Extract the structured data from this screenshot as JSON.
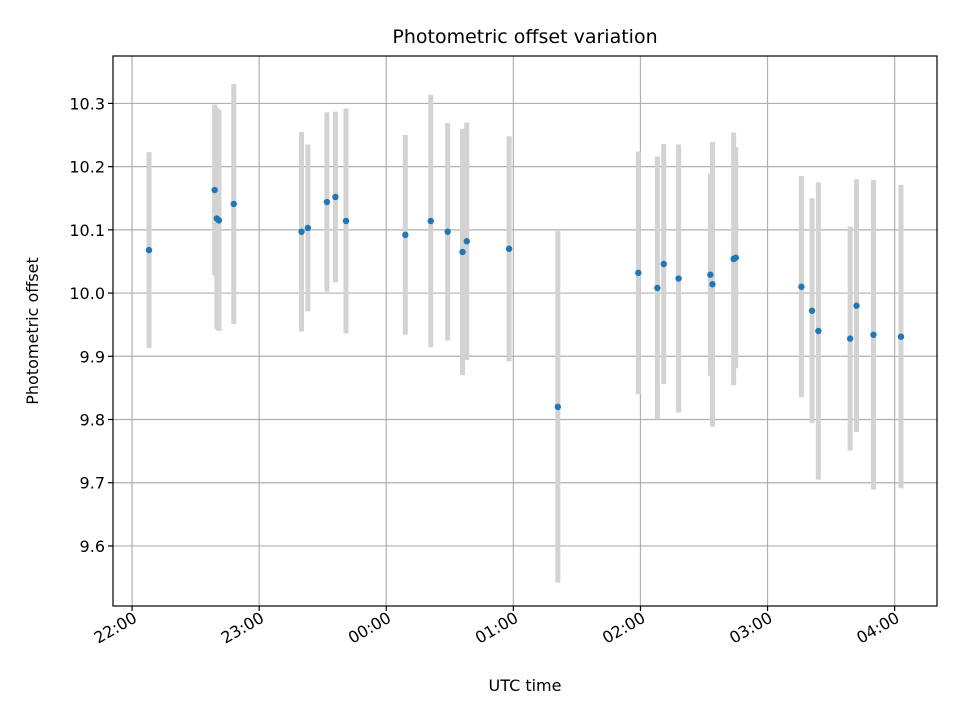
{
  "chart_data": {
    "type": "scatter",
    "title": "Photometric offset variation",
    "xlabel": "UTC time",
    "ylabel": "Photometric offset",
    "x_axis": {
      "kind": "time",
      "range": [
        "21:51",
        "04:20"
      ],
      "ticks": [
        "22:00",
        "23:00",
        "00:00",
        "01:00",
        "02:00",
        "03:00",
        "04:00"
      ]
    },
    "y_axis": {
      "range": [
        9.505,
        10.375
      ],
      "ticks": [
        "9.6",
        "9.7",
        "9.8",
        "9.9",
        "10.0",
        "10.1",
        "10.2",
        "10.3"
      ]
    },
    "grid": true,
    "colors": {
      "point": "#1f77b4",
      "errorbar": "#d3d3d3",
      "grid": "#b0b0b0"
    },
    "series": [
      {
        "points": [
          {
            "x": "22:08",
            "y": 10.068,
            "yerr": 0.155
          },
          {
            "x": "22:39",
            "y": 10.163,
            "yerr": 0.135
          },
          {
            "x": "22:40",
            "y": 10.118,
            "yerr": 0.175
          },
          {
            "x": "22:41",
            "y": 10.115,
            "yerr": 0.175
          },
          {
            "x": "22:48",
            "y": 10.141,
            "yerr": 0.19
          },
          {
            "x": "23:20",
            "y": 10.097,
            "yerr": 0.158
          },
          {
            "x": "23:23",
            "y": 10.103,
            "yerr": 0.132
          },
          {
            "x": "23:32",
            "y": 10.144,
            "yerr": 0.142
          },
          {
            "x": "23:36",
            "y": 10.152,
            "yerr": 0.135
          },
          {
            "x": "23:41",
            "y": 10.114,
            "yerr": 0.178
          },
          {
            "x": "00:09",
            "y": 10.092,
            "yerr": 0.158
          },
          {
            "x": "00:21",
            "y": 10.114,
            "yerr": 0.2
          },
          {
            "x": "00:29",
            "y": 10.097,
            "yerr": 0.172
          },
          {
            "x": "00:36",
            "y": 10.065,
            "yerr": 0.195
          },
          {
            "x": "00:38",
            "y": 10.082,
            "yerr": 0.188
          },
          {
            "x": "00:58",
            "y": 10.07,
            "yerr": 0.178
          },
          {
            "x": "01:21",
            "y": 9.82,
            "yerr": 0.278
          },
          {
            "x": "01:59",
            "y": 10.032,
            "yerr": 0.192
          },
          {
            "x": "02:08",
            "y": 10.008,
            "yerr": 0.208
          },
          {
            "x": "02:11",
            "y": 10.046,
            "yerr": 0.19
          },
          {
            "x": "02:18",
            "y": 10.023,
            "yerr": 0.212
          },
          {
            "x": "02:33",
            "y": 10.029,
            "yerr": 0.16
          },
          {
            "x": "02:34",
            "y": 10.014,
            "yerr": 0.225
          },
          {
            "x": "02:44",
            "y": 10.054,
            "yerr": 0.2
          },
          {
            "x": "02:45",
            "y": 10.056,
            "yerr": 0.175
          },
          {
            "x": "03:16",
            "y": 10.01,
            "yerr": 0.175
          },
          {
            "x": "03:21",
            "y": 9.972,
            "yerr": 0.178
          },
          {
            "x": "03:24",
            "y": 9.94,
            "yerr": 0.235
          },
          {
            "x": "03:39",
            "y": 9.928,
            "yerr": 0.177
          },
          {
            "x": "03:42",
            "y": 9.98,
            "yerr": 0.2
          },
          {
            "x": "03:50",
            "y": 9.934,
            "yerr": 0.245
          },
          {
            "x": "04:03",
            "y": 9.931,
            "yerr": 0.24
          }
        ]
      }
    ]
  }
}
